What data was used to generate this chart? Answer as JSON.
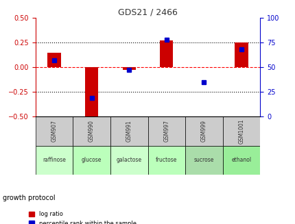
{
  "title": "GDS21 / 2466",
  "samples": [
    "GSM907",
    "GSM990",
    "GSM991",
    "GSM997",
    "GSM999",
    "GSM1001"
  ],
  "conditions": [
    "raffinose",
    "glucose",
    "galactose",
    "fructose",
    "sucrose",
    "ethanol"
  ],
  "log_ratio": [
    0.15,
    -0.55,
    -0.03,
    0.27,
    0.0,
    0.25
  ],
  "percentile_rank": [
    57,
    19,
    47,
    78,
    35,
    68
  ],
  "bar_color": "#cc0000",
  "dot_color": "#0000cc",
  "ylim_left": [
    -0.5,
    0.5
  ],
  "ylim_right": [
    0,
    100
  ],
  "yticks_left": [
    -0.5,
    -0.25,
    0,
    0.25,
    0.5
  ],
  "yticks_right": [
    0,
    25,
    50,
    75,
    100
  ],
  "hline_y_left": [
    0.25,
    0.0,
    -0.25
  ],
  "hline_styles": [
    "dotted",
    "dashed",
    "dotted"
  ],
  "hline_colors": [
    "black",
    "red",
    "black"
  ],
  "cell_colors_gray": "#cccccc",
  "cell_colors_green_light": "#ccffcc",
  "cell_colors_green_dark": "#66cc66",
  "growth_protocol_label": "growth protocol",
  "legend_log_ratio": "log ratio",
  "legend_percentile": "percentile rank within the sample",
  "title_color": "#333333",
  "left_axis_color": "#cc0000",
  "right_axis_color": "#0000cc"
}
